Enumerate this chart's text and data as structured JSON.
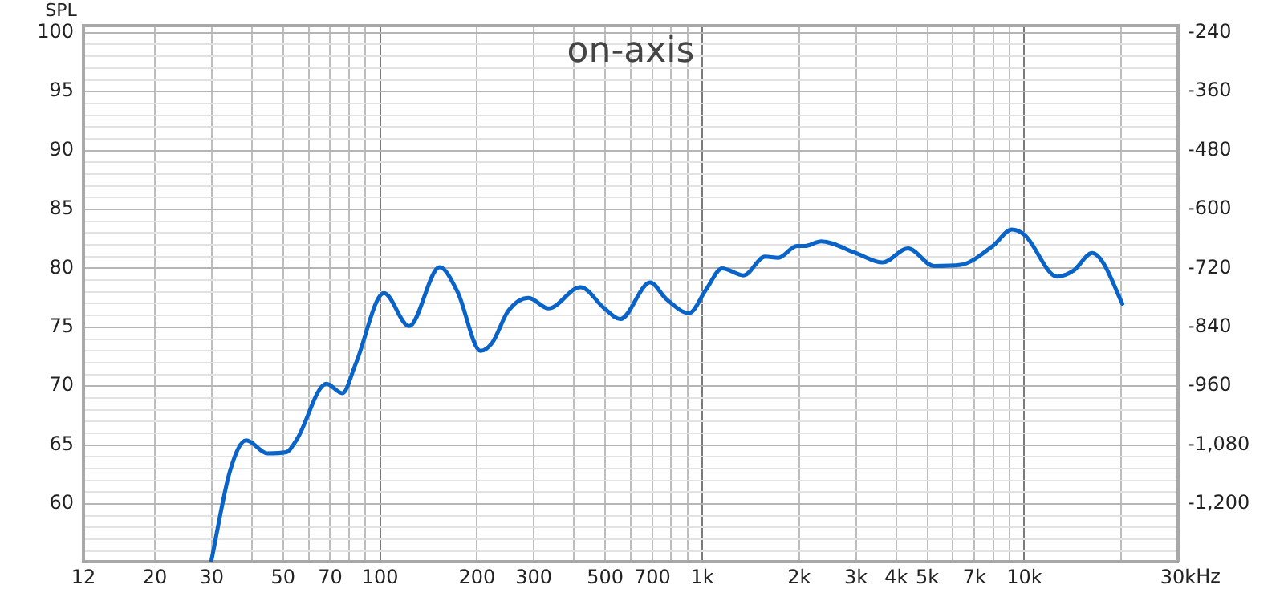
{
  "chart_data": {
    "type": "line",
    "title": "on-axis",
    "ylabel": "SPL",
    "log": "x",
    "grid": true,
    "x": [
      29.9,
      34.2,
      38.4,
      44.7,
      51.1,
      55.2,
      68.1,
      76.4,
      84,
      102.8,
      123,
      153,
      174,
      205,
      223,
      250,
      289,
      333,
      419,
      497,
      557,
      689,
      773,
      910,
      1028,
      1153,
      1343,
      1567,
      1722,
      1968,
      2084,
      2339,
      2999,
      3631,
      4352,
      5239,
      6340,
      7980,
      9140,
      10050,
      12650,
      14190,
      16250,
      17540,
      20140
    ],
    "series": [
      {
        "color": "#0a64c8",
        "values": [
          55.1,
          62.8,
          65.4,
          64.3,
          64.4,
          65.5,
          70.2,
          69.4,
          71.9,
          77.9,
          75.1,
          80.1,
          78.0,
          73.0,
          73.7,
          76.4,
          77.5,
          76.6,
          78.4,
          76.6,
          75.7,
          78.8,
          77.4,
          76.2,
          78.2,
          80.0,
          79.4,
          81.0,
          80.9,
          81.9,
          81.9,
          82.3,
          81.3,
          80.5,
          81.7,
          80.2,
          80.3,
          81.9,
          83.3,
          82.8,
          79.3,
          79.8,
          81.3,
          80.5,
          77.0
        ]
      }
    ],
    "xlim": [
      12,
      30000
    ],
    "xticks": [
      12,
      20,
      30,
      {
        "value": 40,
        "label": null
      },
      50,
      {
        "value": 60,
        "label": null
      },
      70,
      {
        "value": 80,
        "label": null
      },
      {
        "value": 90,
        "label": null
      },
      100,
      200,
      300,
      {
        "value": 400,
        "label": null
      },
      500,
      {
        "value": 600,
        "label": null
      },
      700,
      {
        "value": 800,
        "label": null
      },
      {
        "value": 900,
        "label": null
      },
      {
        "value": 1000,
        "label": "1k"
      },
      {
        "value": 2000,
        "label": "2k"
      },
      {
        "value": 3000,
        "label": "3k"
      },
      {
        "value": 4000,
        "label": "4k"
      },
      {
        "value": 5000,
        "label": "5k"
      },
      {
        "value": 6000,
        "label": null
      },
      {
        "value": 7000,
        "label": "7k"
      },
      {
        "value": 8000,
        "label": null
      },
      {
        "value": 9000,
        "label": null
      },
      {
        "value": 10000,
        "label": "10k"
      },
      {
        "value": 20000,
        "label": null
      },
      {
        "value": 30000,
        "label": "30k"
      }
    ],
    "xlabel": "Hz",
    "ylim": [
      55.1,
      100.6
    ],
    "yticks": [
      {
        "value": 56,
        "label": null
      },
      {
        "value": 57,
        "label": null
      },
      {
        "value": 58,
        "label": null
      },
      {
        "value": 59,
        "label": null
      },
      60,
      {
        "value": 61,
        "label": null
      },
      {
        "value": 62,
        "label": null
      },
      {
        "value": 63,
        "label": null
      },
      {
        "value": 64,
        "label": null
      },
      65,
      {
        "value": 66,
        "label": null
      },
      {
        "value": 67,
        "label": null
      },
      {
        "value": 68,
        "label": null
      },
      {
        "value": 69,
        "label": null
      },
      70,
      {
        "value": 71,
        "label": null
      },
      {
        "value": 72,
        "label": null
      },
      {
        "value": 73,
        "label": null
      },
      {
        "value": 74,
        "label": null
      },
      75,
      {
        "value": 76,
        "label": null
      },
      {
        "value": 77,
        "label": null
      },
      {
        "value": 78,
        "label": null
      },
      {
        "value": 79,
        "label": null
      },
      80,
      {
        "value": 81,
        "label": null
      },
      {
        "value": 82,
        "label": null
      },
      {
        "value": 83,
        "label": null
      },
      {
        "value": 84,
        "label": null
      },
      85,
      {
        "value": 86,
        "label": null
      },
      {
        "value": 87,
        "label": null
      },
      {
        "value": 88,
        "label": null
      },
      {
        "value": 89,
        "label": null
      },
      90,
      {
        "value": 91,
        "label": null
      },
      {
        "value": 92,
        "label": null
      },
      {
        "value": 93,
        "label": null
      },
      {
        "value": 94,
        "label": null
      },
      95,
      {
        "value": 96,
        "label": null
      },
      {
        "value": 97,
        "label": null
      },
      {
        "value": 98,
        "label": null
      },
      {
        "value": 99,
        "label": null
      },
      100
    ],
    "y2lim": [
      -1317.6,
      -225.6
    ],
    "y2ticks": [
      -240,
      -360,
      -480,
      -600,
      -720,
      -840,
      -960,
      {
        "value": -1080,
        "label": "-1,080"
      },
      {
        "value": -1200,
        "label": "-1,200"
      }
    ]
  }
}
